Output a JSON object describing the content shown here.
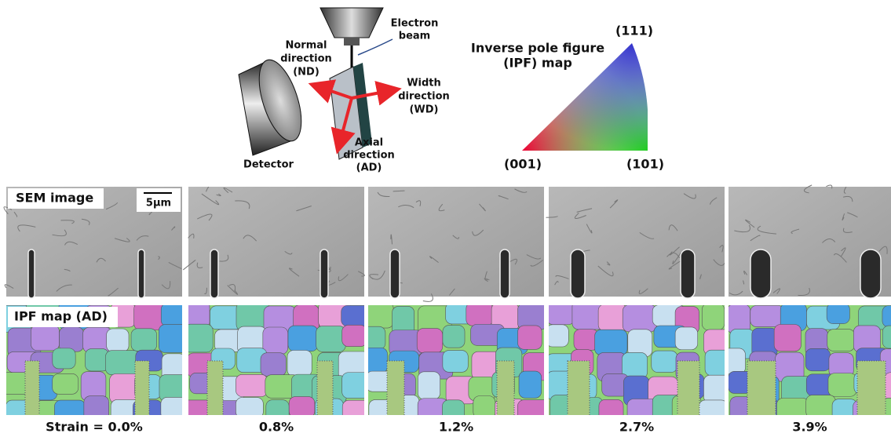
{
  "diagram": {
    "electron_beam": [
      "Electron",
      "beam"
    ],
    "normal_direction": [
      "Normal",
      "direction",
      "(ND)"
    ],
    "width_direction": [
      "Width",
      "direction",
      "(WD)"
    ],
    "axial_direction": [
      "Axial",
      "direction",
      "(AD)"
    ],
    "detector": "Detector"
  },
  "ipf_legend": {
    "title": [
      "Inverse pole figure",
      "(IPF) map"
    ],
    "corners": {
      "top": "(111)",
      "left": "(001)",
      "right": "(101)"
    }
  },
  "panels": {
    "sem_label": "SEM image",
    "scale_bar": "5μm",
    "ipf_label": "IPF map (AD)",
    "strains": [
      "Strain = 0.0%",
      "0.8%",
      "1.2%",
      "2.7%",
      "3.9%"
    ]
  }
}
